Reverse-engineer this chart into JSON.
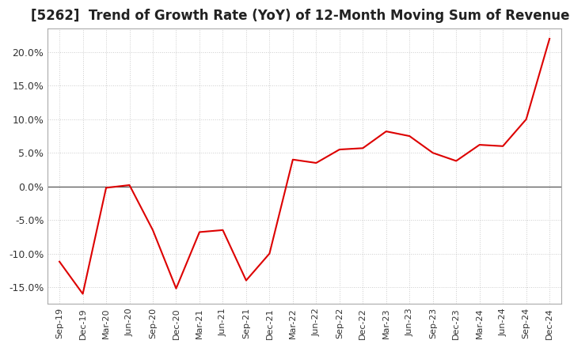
{
  "title": "[5262]  Trend of Growth Rate (YoY) of 12-Month Moving Sum of Revenues",
  "title_fontsize": 12,
  "line_color": "#dd0000",
  "background_color": "#ffffff",
  "plot_bg_color": "#ffffff",
  "grid_color": "#cccccc",
  "zero_line_color": "#555555",
  "ylim": [
    -0.175,
    0.235
  ],
  "yticks": [
    -0.15,
    -0.1,
    -0.05,
    0.0,
    0.05,
    0.1,
    0.15,
    0.2
  ],
  "x_labels": [
    "Sep-19",
    "Dec-19",
    "Mar-20",
    "Jun-20",
    "Sep-20",
    "Dec-20",
    "Mar-21",
    "Jun-21",
    "Sep-21",
    "Dec-21",
    "Mar-22",
    "Jun-22",
    "Sep-22",
    "Dec-22",
    "Mar-23",
    "Jun-23",
    "Sep-23",
    "Dec-23",
    "Mar-24",
    "Jun-24",
    "Sep-24",
    "Dec-24"
  ],
  "data": [
    [
      "Sep-19",
      -0.112
    ],
    [
      "Dec-19",
      -0.16
    ],
    [
      "Mar-20",
      -0.002
    ],
    [
      "Jun-20",
      0.002
    ],
    [
      "Sep-20",
      -0.065
    ],
    [
      "Dec-20",
      -0.152
    ],
    [
      "Mar-21",
      -0.068
    ],
    [
      "Jun-21",
      -0.065
    ],
    [
      "Sep-21",
      -0.14
    ],
    [
      "Dec-21",
      -0.1
    ],
    [
      "Mar-22",
      0.04
    ],
    [
      "Jun-22",
      0.035
    ],
    [
      "Sep-22",
      0.055
    ],
    [
      "Dec-22",
      0.057
    ],
    [
      "Mar-23",
      0.082
    ],
    [
      "Jun-23",
      0.075
    ],
    [
      "Sep-23",
      0.05
    ],
    [
      "Dec-23",
      0.038
    ],
    [
      "Mar-24",
      0.062
    ],
    [
      "Jun-24",
      0.06
    ],
    [
      "Sep-24",
      0.1
    ],
    [
      "Dec-24",
      0.22
    ]
  ]
}
